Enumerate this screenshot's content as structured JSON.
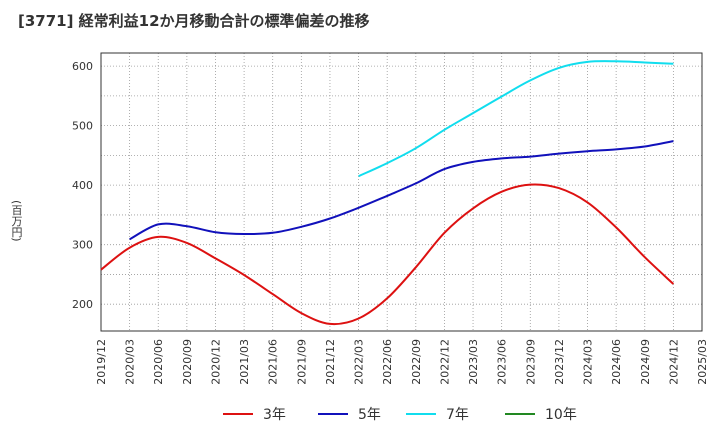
{
  "chart_data": {
    "type": "line",
    "title": "[3771]  経常利益12か月移動合計の標準偏差の推移",
    "ylabel": "(百万円)",
    "xlabel": "",
    "ylim": [
      155,
      622
    ],
    "yticks": [
      200,
      300,
      400,
      500,
      600
    ],
    "grid": true,
    "legend_position": "bottom",
    "x": [
      "2019/12",
      "2020/03",
      "2020/06",
      "2020/09",
      "2020/12",
      "2021/03",
      "2021/06",
      "2021/09",
      "2021/12",
      "2022/03",
      "2022/06",
      "2022/09",
      "2022/12",
      "2023/03",
      "2023/06",
      "2023/09",
      "2023/12",
      "2024/03",
      "2024/06",
      "2024/09",
      "2024/12",
      "2025/03"
    ],
    "series": [
      {
        "name": "3年",
        "color": "#dd1111",
        "values": [
          258,
          295,
          313,
          303,
          277,
          249,
          217,
          185,
          167,
          176,
          210,
          262,
          320,
          361,
          389,
          401,
          395,
          371,
          329,
          279,
          234,
          null
        ]
      },
      {
        "name": "5年",
        "color": "#1111bb",
        "values": [
          null,
          309,
          334,
          331,
          321,
          318,
          320,
          330,
          344,
          362,
          382,
          403,
          427,
          439,
          445,
          448,
          453,
          457,
          460,
          465,
          474,
          null
        ]
      },
      {
        "name": "7年",
        "color": "#11ddee",
        "values": [
          null,
          null,
          null,
          null,
          null,
          null,
          null,
          null,
          null,
          415,
          437,
          462,
          493,
          521,
          549,
          576,
          597,
          607,
          608,
          606,
          604,
          null
        ]
      },
      {
        "name": "10年",
        "color": "#228822",
        "values": [
          null,
          null,
          null,
          null,
          null,
          null,
          null,
          null,
          null,
          null,
          null,
          null,
          null,
          null,
          null,
          null,
          null,
          null,
          null,
          null,
          null,
          null
        ]
      }
    ]
  }
}
